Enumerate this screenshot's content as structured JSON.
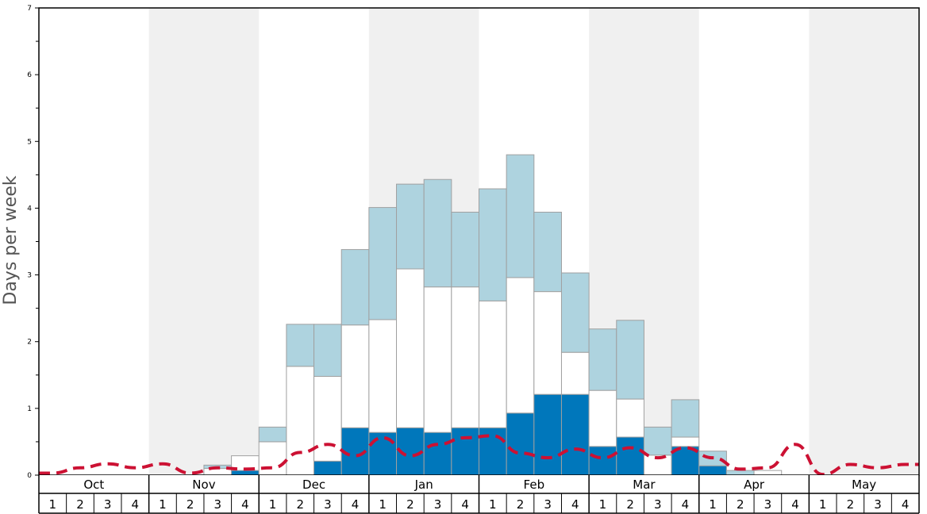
{
  "chart_data": {
    "type": "bar",
    "ylabel": "Days per week",
    "ylim": [
      0,
      7
    ],
    "yticks": [
      "0",
      "1",
      "2",
      "3",
      "4",
      "5",
      "6",
      "7"
    ],
    "months": [
      "Oct",
      "Nov",
      "Dec",
      "Jan",
      "Feb",
      "Mar",
      "Apr",
      "May"
    ],
    "weeks": [
      "1",
      "2",
      "3",
      "4"
    ],
    "categories": [
      "Oct 1",
      "Oct 2",
      "Oct 3",
      "Oct 4",
      "Nov 1",
      "Nov 2",
      "Nov 3",
      "Nov 4",
      "Dec 1",
      "Dec 2",
      "Dec 3",
      "Dec 4",
      "Jan 1",
      "Jan 2",
      "Jan 3",
      "Jan 4",
      "Feb 1",
      "Feb 2",
      "Feb 3",
      "Feb 4",
      "Mar 1",
      "Mar 2",
      "Mar 3",
      "Mar 4",
      "Apr 1",
      "Apr 2",
      "Apr 3",
      "Apr 4",
      "May 1",
      "May 2",
      "May 3",
      "May 4"
    ],
    "series": [
      {
        "color": "#0077bb",
        "values": [
          0,
          0,
          0,
          0,
          0,
          0,
          0,
          0.07,
          0,
          0,
          0.21,
          0.71,
          0.64,
          0.71,
          0.64,
          0.71,
          0.71,
          0.93,
          1.21,
          1.21,
          0.43,
          0.57,
          0,
          0.43,
          0.14,
          0,
          0,
          0,
          0,
          0,
          0,
          0
        ]
      },
      {
        "color": "#ffffff",
        "values": [
          0,
          0,
          0,
          0,
          0,
          0,
          0.1,
          0.22,
          0.5,
          1.63,
          1.27,
          1.54,
          1.69,
          2.38,
          2.18,
          2.11,
          1.9,
          2.03,
          1.54,
          0.63,
          0.84,
          0.57,
          0.3,
          0.14,
          0,
          0,
          0.07,
          0,
          0,
          0,
          0,
          0
        ]
      },
      {
        "color": "#aed3df",
        "values": [
          0,
          0,
          0,
          0,
          0,
          0,
          0.05,
          0,
          0.22,
          0.63,
          0.78,
          1.13,
          1.68,
          1.27,
          1.61,
          1.12,
          1.68,
          1.84,
          1.19,
          1.19,
          0.92,
          1.18,
          0.42,
          0.56,
          0.22,
          0.07,
          0,
          0,
          0,
          0,
          0,
          0
        ]
      }
    ],
    "line": {
      "color": "#cc1133",
      "style": "dashed",
      "values": [
        0.03,
        0.11,
        0.17,
        0.11,
        0.17,
        0.03,
        0.11,
        0.09,
        0.11,
        0.34,
        0.46,
        0.29,
        0.56,
        0.29,
        0.46,
        0.56,
        0.59,
        0.33,
        0.26,
        0.39,
        0.26,
        0.41,
        0.26,
        0.41,
        0.26,
        0.09,
        0.11,
        0.46,
        0.01,
        0.16,
        0.11,
        0.16
      ]
    },
    "shaded_months": [
      "Nov",
      "Jan",
      "Mar",
      "May"
    ],
    "shade_color": "#f0f0f0"
  }
}
